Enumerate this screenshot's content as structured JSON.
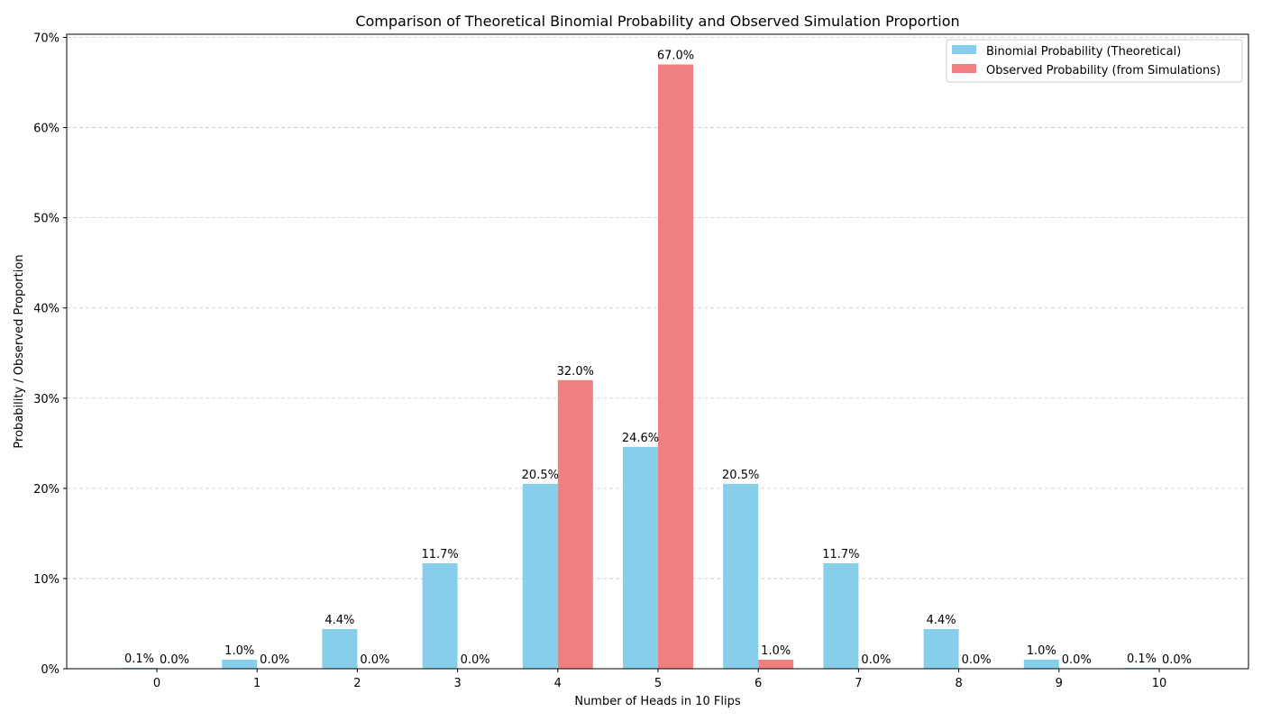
{
  "chart_data": {
    "type": "bar",
    "title": "Comparison of Theoretical Binomial Probability and Observed Simulation Proportion",
    "xlabel": "Number of Heads in 10 Flips",
    "ylabel": "Probability / Observed Proportion",
    "categories": [
      "0",
      "1",
      "2",
      "3",
      "4",
      "5",
      "6",
      "7",
      "8",
      "9",
      "10"
    ],
    "series": [
      {
        "name": "Binomial Probability (Theoretical)",
        "color": "#87CEEB",
        "values": [
          0.1,
          1.0,
          4.4,
          11.7,
          20.5,
          24.6,
          20.5,
          11.7,
          4.4,
          1.0,
          0.1
        ]
      },
      {
        "name": "Observed Probability (from Simulations)",
        "color": "#F08080",
        "values": [
          0.0,
          0.0,
          0.0,
          0.0,
          32.0,
          67.0,
          1.0,
          0.0,
          0.0,
          0.0,
          0.0
        ]
      }
    ],
    "value_labels": [
      [
        "0.1%",
        "1.0%",
        "4.4%",
        "11.7%",
        "20.5%",
        "24.6%",
        "20.5%",
        "11.7%",
        "4.4%",
        "1.0%",
        "0.1%"
      ],
      [
        "0.0%",
        "0.0%",
        "0.0%",
        "0.0%",
        "32.0%",
        "67.0%",
        "1.0%",
        "0.0%",
        "0.0%",
        "0.0%",
        "0.0%"
      ]
    ],
    "yticks": [
      0,
      10,
      20,
      30,
      40,
      50,
      60,
      70
    ],
    "ytick_labels": [
      "0%",
      "10%",
      "20%",
      "30%",
      "40%",
      "50%",
      "60%",
      "70%"
    ],
    "ylim": [
      0,
      70.35
    ],
    "grid": "y dashed",
    "legend": "top-right"
  }
}
